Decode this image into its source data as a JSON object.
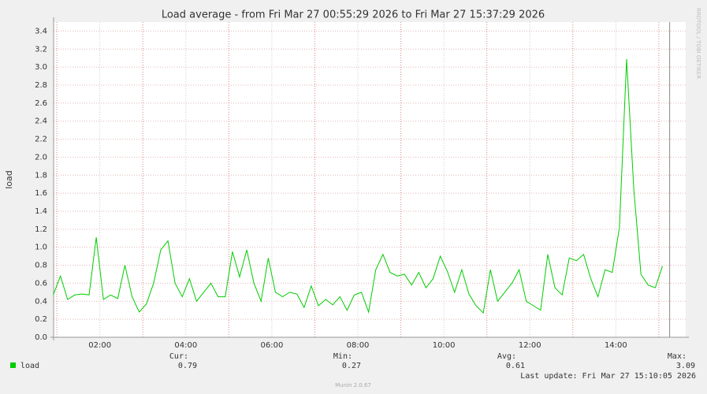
{
  "chart_data": {
    "type": "line",
    "title": "Load average - from Fri Mar 27 00:55:29 2026 to Fri Mar 27 15:37:29 2026",
    "y_label": "load",
    "side_label": "RRDTOOL / TOBI OETIKER",
    "footer": "Munin 2.0.67",
    "last_update": "Last update: Fri Mar 27 15:10:05 2026",
    "xlim": [
      55.48,
      937.48
    ],
    "xticks": [
      {
        "value": 120,
        "label": "02:00"
      },
      {
        "value": 240,
        "label": "04:00"
      },
      {
        "value": 360,
        "label": "06:00"
      },
      {
        "value": 480,
        "label": "08:00"
      },
      {
        "value": 600,
        "label": "10:00"
      },
      {
        "value": 720,
        "label": "12:00"
      },
      {
        "value": 840,
        "label": "14:00"
      }
    ],
    "xgrid_major": [
      60,
      180,
      300,
      420,
      540,
      660,
      780,
      900
    ],
    "ylim": [
      0,
      3.5
    ],
    "yticks": [
      {
        "value": 0,
        "label": "0.0"
      },
      0.2,
      0.4,
      0.6,
      0.8,
      {
        "value": 1,
        "label": "1.0"
      },
      1.2,
      1.4,
      1.6,
      1.8,
      {
        "value": 2,
        "label": "2.0"
      },
      2.2,
      2.4,
      2.6,
      2.8,
      {
        "value": 3,
        "label": "3.0"
      },
      3.2,
      3.4
    ],
    "grid": true,
    "x": [
      55,
      65,
      75,
      85,
      95,
      105,
      115,
      125,
      135,
      145,
      155,
      165,
      175,
      185,
      195,
      205,
      215,
      225,
      235,
      245,
      255,
      265,
      275,
      285,
      295,
      305,
      315,
      325,
      335,
      345,
      355,
      365,
      375,
      385,
      395,
      405,
      415,
      425,
      435,
      445,
      455,
      465,
      475,
      485,
      495,
      505,
      515,
      525,
      535,
      545,
      555,
      565,
      575,
      585,
      595,
      605,
      615,
      625,
      635,
      645,
      655,
      665,
      675,
      685,
      695,
      705,
      715,
      725,
      735,
      745,
      755,
      765,
      775,
      785,
      795,
      805,
      815,
      825,
      835,
      845,
      855,
      865,
      875,
      885,
      895,
      905
    ],
    "series": [
      {
        "name": "load",
        "color": "#00cc00",
        "values": [
          0.47,
          0.68,
          0.42,
          0.47,
          0.48,
          0.47,
          1.11,
          0.42,
          0.47,
          0.43,
          0.8,
          0.45,
          0.28,
          0.37,
          0.6,
          0.97,
          1.07,
          0.6,
          0.45,
          0.65,
          0.4,
          0.5,
          0.6,
          0.45,
          0.45,
          0.95,
          0.67,
          0.97,
          0.6,
          0.4,
          0.88,
          0.5,
          0.45,
          0.5,
          0.48,
          0.33,
          0.57,
          0.35,
          0.42,
          0.36,
          0.45,
          0.3,
          0.47,
          0.5,
          0.28,
          0.75,
          0.92,
          0.72,
          0.68,
          0.7,
          0.58,
          0.72,
          0.55,
          0.65,
          0.9,
          0.73,
          0.5,
          0.75,
          0.48,
          0.35,
          0.27,
          0.75,
          0.4,
          0.5,
          0.6,
          0.75,
          0.4,
          0.35,
          0.3,
          0.92,
          0.55,
          0.47,
          0.88,
          0.85,
          0.92,
          0.65,
          0.45,
          0.75,
          0.72,
          1.22,
          3.09,
          1.65,
          0.7,
          0.58,
          0.55,
          0.79
        ]
      }
    ],
    "now_marker": 915.08,
    "legend_stats": [
      {
        "label": "Cur:",
        "value": 0.79
      },
      {
        "label": "Min:",
        "value": 0.27
      },
      {
        "label": "Avg:",
        "value": 0.61
      },
      {
        "label": "Max:",
        "value": 3.09
      }
    ]
  }
}
